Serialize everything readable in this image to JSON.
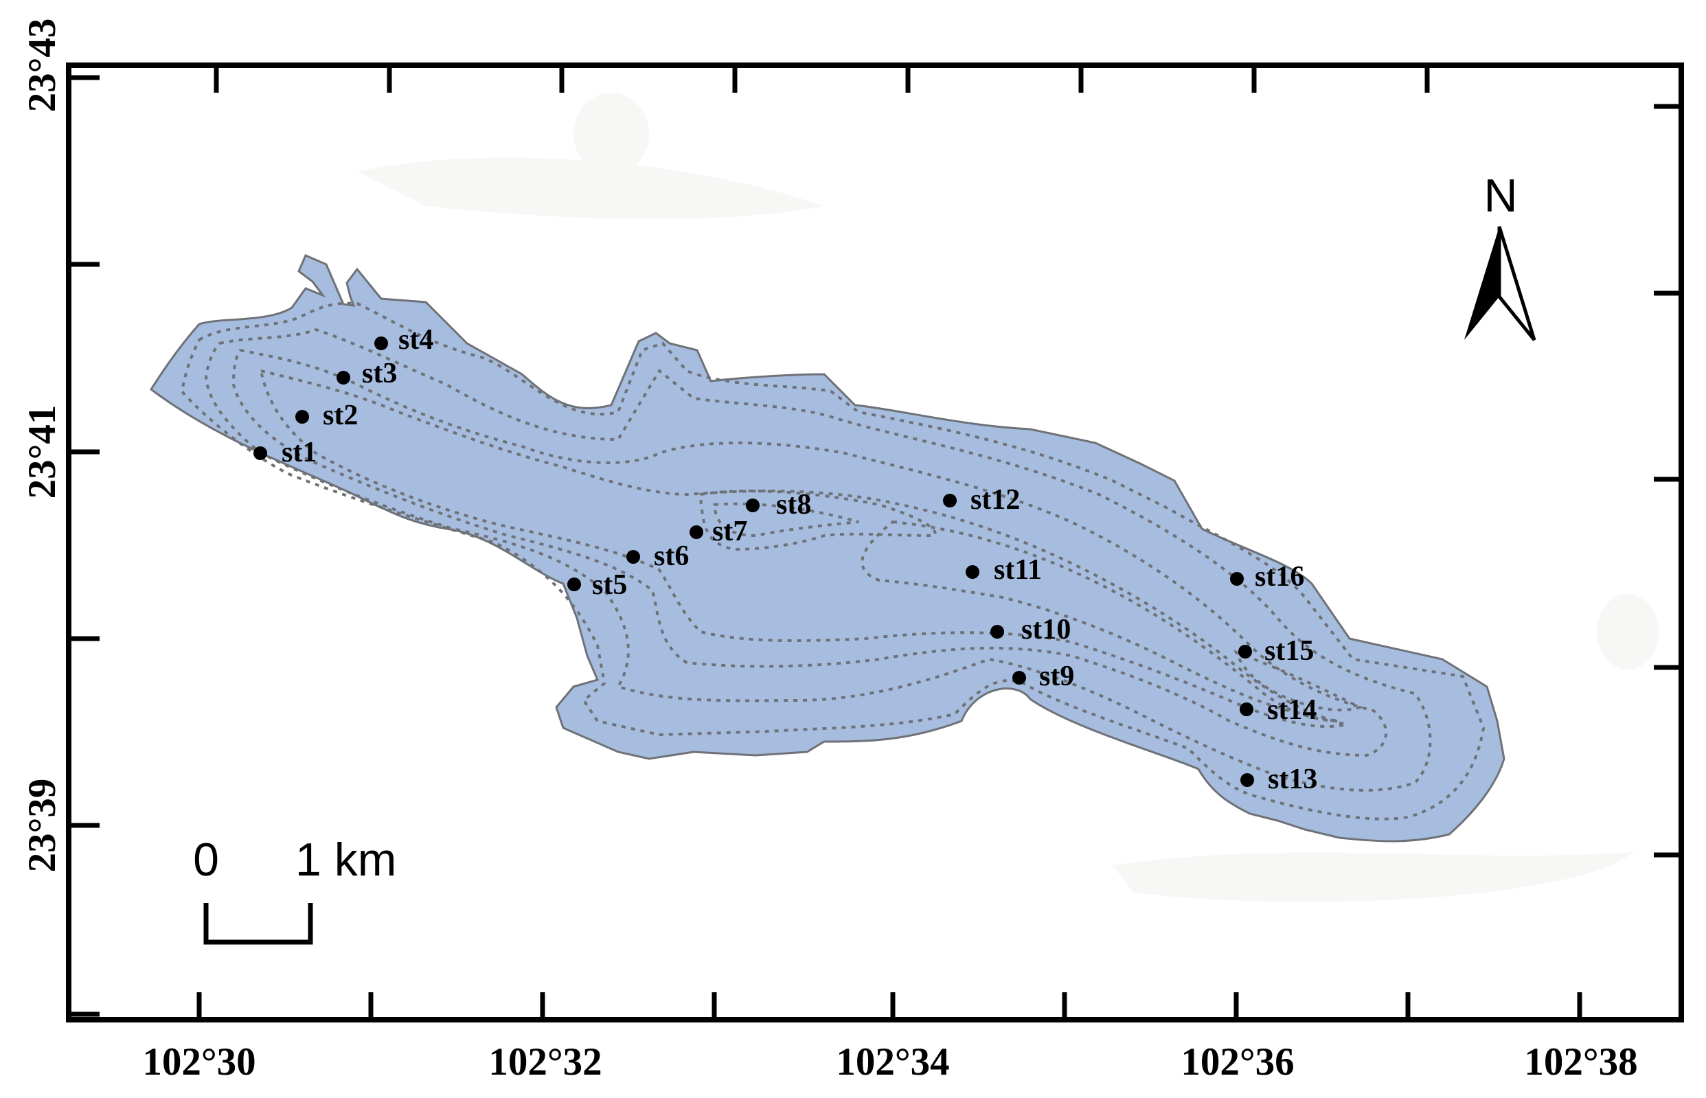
{
  "colors": {
    "lake_fill": "#a7bddf",
    "lake_outline": "#6e7277",
    "contour": "#6e7277",
    "frame": "#000000",
    "station": "#000000",
    "background": "#ffffff"
  },
  "axes": {
    "x_ticks": [
      "102°30",
      "102°32",
      "102°34",
      "102°36",
      "102°38"
    ],
    "y_ticks": [
      "23°43",
      "23°41",
      "23°39"
    ]
  },
  "north_arrow": {
    "label": "N",
    "icon": "north-arrow-icon"
  },
  "scale_bar": {
    "zero_label": "0",
    "end_label": "1 km"
  },
  "stations": [
    {
      "id": "st1",
      "label": "st1"
    },
    {
      "id": "st2",
      "label": "st2"
    },
    {
      "id": "st3",
      "label": "st3"
    },
    {
      "id": "st4",
      "label": "st4"
    },
    {
      "id": "st5",
      "label": "st5"
    },
    {
      "id": "st6",
      "label": "st6"
    },
    {
      "id": "st7",
      "label": "st7"
    },
    {
      "id": "st8",
      "label": "st8"
    },
    {
      "id": "st9",
      "label": "st9"
    },
    {
      "id": "st10",
      "label": "st10"
    },
    {
      "id": "st11",
      "label": "st11"
    },
    {
      "id": "st12",
      "label": "st12"
    },
    {
      "id": "st13",
      "label": "st13"
    },
    {
      "id": "st14",
      "label": "st14"
    },
    {
      "id": "st15",
      "label": "st15"
    },
    {
      "id": "st16",
      "label": "st16"
    }
  ]
}
